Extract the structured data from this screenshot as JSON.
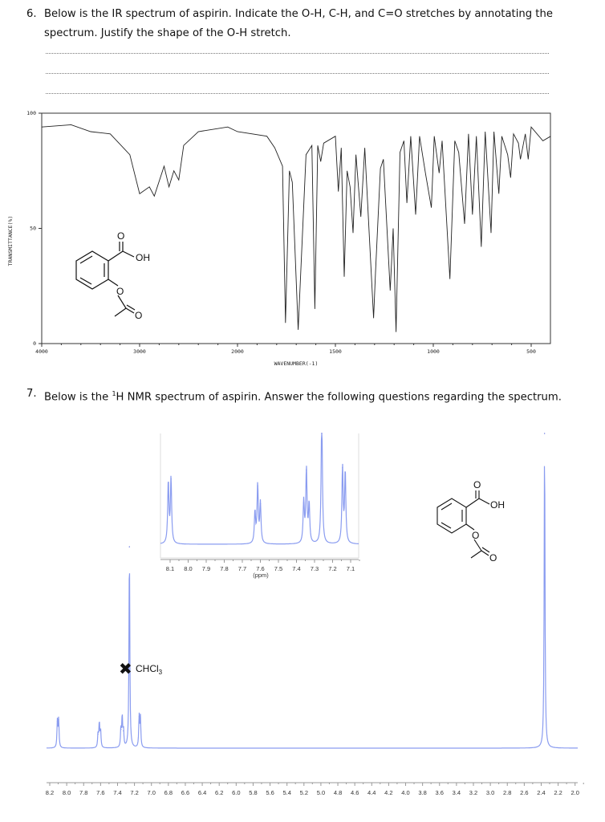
{
  "question6": {
    "number": "6.",
    "text": "Below is the IR spectrum of aspirin. Indicate the O-H, C-H, and C=O stretches by annotating the spectrum. Justify the shape of the O-H stretch."
  },
  "question7": {
    "number": "7.",
    "text_pre": "Below is the ",
    "superscript": "1",
    "text_post": "H NMR spectrum of aspirin. Answer the following questions regarding the spectrum."
  },
  "molecule": {
    "carbonyl_o": "O",
    "hydroxyl": "OH",
    "ester_o": "O",
    "acetyl_o": "O"
  },
  "chcl3_label": "CHCl",
  "chcl3_sub": "3",
  "colors": {
    "ir_line": "#222222",
    "nmr_line": "#8a9cf0",
    "nmr_peak_dark": "#3b50d8",
    "text": "#111111"
  },
  "chart_data": [
    {
      "type": "line",
      "title": "",
      "xlabel": "WAVENUMBER(-1)",
      "ylabel": "TRANSMITTANCE(%)",
      "xlim": [
        4000,
        400
      ],
      "ylim": [
        0,
        100
      ],
      "x_scale_note": "axis compressed 2x above 2000",
      "xticks": [
        "4000",
        "3000",
        "2000",
        "1500",
        "1000",
        "500"
      ],
      "yticks": [
        "0",
        "50",
        "100"
      ],
      "x": [
        4000,
        3700,
        3500,
        3300,
        3100,
        3000,
        2900,
        2850,
        2750,
        2700,
        2650,
        2600,
        2550,
        2400,
        2100,
        2000,
        1850,
        1810,
        1770,
        1755,
        1735,
        1720,
        1690,
        1650,
        1620,
        1605,
        1590,
        1575,
        1560,
        1500,
        1485,
        1470,
        1455,
        1440,
        1425,
        1410,
        1395,
        1370,
        1350,
        1305,
        1295,
        1270,
        1255,
        1220,
        1205,
        1190,
        1170,
        1150,
        1135,
        1115,
        1090,
        1070,
        1040,
        1010,
        995,
        970,
        955,
        915,
        890,
        870,
        840,
        820,
        800,
        780,
        755,
        735,
        705,
        690,
        665,
        650,
        620,
        605,
        590,
        565,
        555,
        530,
        515,
        500,
        440,
        400
      ],
      "y": [
        94,
        95,
        92,
        91,
        82,
        65,
        68,
        64,
        77,
        68,
        75,
        71,
        86,
        92,
        94,
        92,
        90,
        85,
        77,
        9,
        75,
        70,
        6,
        82,
        86,
        15,
        86,
        79,
        87,
        90,
        66,
        85,
        29,
        75,
        68,
        48,
        82,
        55,
        85,
        11,
        31,
        76,
        80,
        23,
        50,
        5,
        83,
        88,
        61,
        90,
        56,
        90,
        74,
        59,
        90,
        74,
        88,
        28,
        88,
        83,
        52,
        91,
        56,
        90,
        42,
        92,
        48,
        92,
        65,
        90,
        82,
        72,
        91,
        87,
        80,
        91,
        80,
        94,
        88,
        90
      ]
    },
    {
      "type": "line",
      "title": "",
      "xlabel": "",
      "xlim": [
        8.2,
        2.0
      ],
      "xticks": [
        "8.2",
        "8.0",
        "7.8",
        "7.6",
        "7.4",
        "7.2",
        "7.0",
        "6.8",
        "6.6",
        "6.4",
        "6.2",
        "6.0",
        "5.8",
        "5.6",
        "5.4",
        "5.2",
        "5.0",
        "4.8",
        "4.6",
        "4.4",
        "4.2",
        "4.0",
        "3.8",
        "3.6",
        "3.4",
        "3.2",
        "3.0",
        "2.8",
        "2.6",
        "2.4",
        "2.2",
        "2.0"
      ],
      "peaks_ppm": [
        8.11,
        8.095,
        7.63,
        7.615,
        7.6,
        7.36,
        7.345,
        7.33,
        7.26,
        7.145,
        7.13,
        2.36
      ],
      "peaks_rel_intensity": [
        0.085,
        0.09,
        0.045,
        0.08,
        0.055,
        0.06,
        0.1,
        0.055,
        0.64,
        0.1,
        0.095,
        1.0
      ]
    },
    {
      "type": "line",
      "title": "",
      "xlabel": "(ppm)",
      "xlim": [
        8.15,
        7.05
      ],
      "xticks": [
        "8.1",
        "8.0",
        "7.9",
        "7.8",
        "7.7",
        "7.6",
        "7.5",
        "7.4",
        "7.3",
        "7.2",
        "7.1"
      ],
      "peaks_ppm": [
        8.11,
        8.095,
        7.63,
        7.615,
        7.6,
        7.36,
        7.345,
        7.33,
        7.26,
        7.145,
        7.13
      ],
      "peaks_rel_intensity": [
        0.55,
        0.58,
        0.28,
        0.52,
        0.36,
        0.37,
        0.66,
        0.35,
        1.2,
        0.68,
        0.64
      ]
    }
  ]
}
